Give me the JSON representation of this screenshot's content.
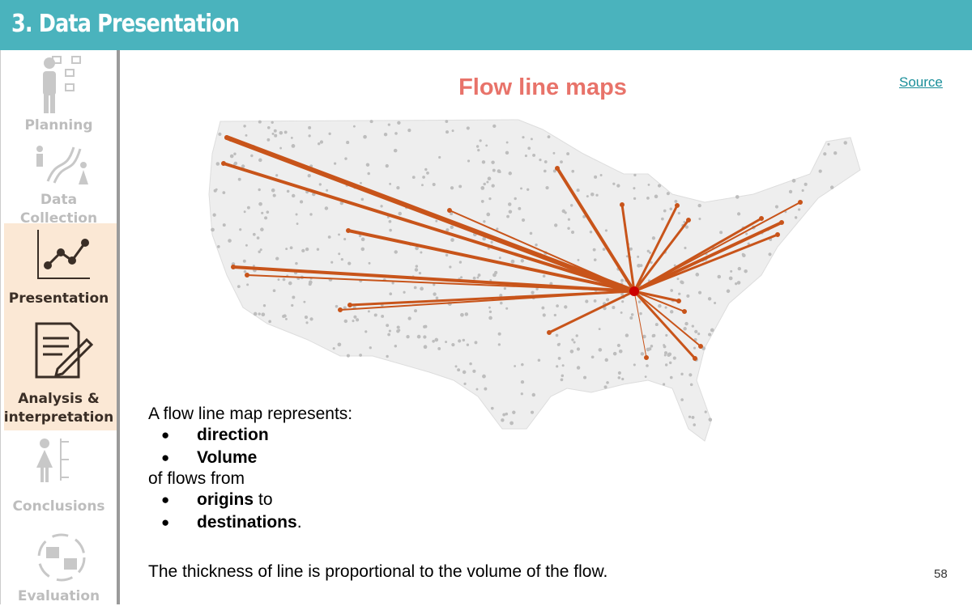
{
  "header": {
    "title": "3. Data Presentation"
  },
  "sidebar": {
    "items": [
      "Planning",
      "Data Collection",
      "Presentation",
      "Analysis & interpretation",
      "Conclusions",
      "Evaluation"
    ]
  },
  "slide": {
    "title": "Flow line maps",
    "source_link": "Source",
    "intro": "A flow line map represents:",
    "list1": [
      {
        "bold": "direction"
      },
      {
        "bold": "Volume"
      }
    ],
    "middle": "of flows from",
    "list2": [
      {
        "bold": "origins",
        "text": "to"
      },
      {
        "bold": "destinations",
        "text": "."
      }
    ],
    "footer_text": "The thickness of line is proportional to the volume of the flow.",
    "page_number": "58"
  }
}
